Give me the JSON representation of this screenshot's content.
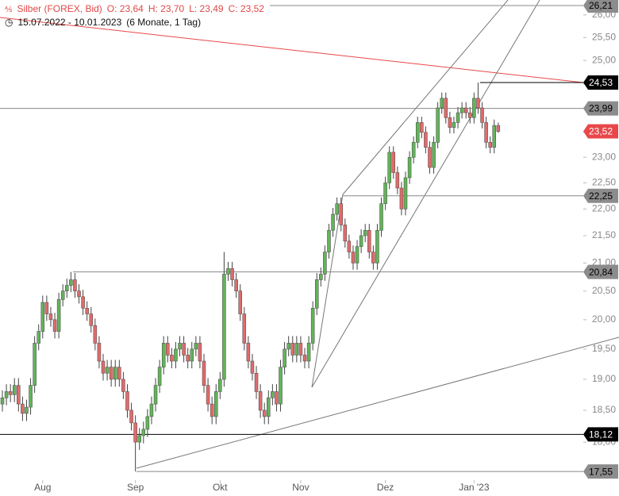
{
  "chart_data": {
    "type": "candlestick",
    "title": "Silber (FOREX, Bid)",
    "ohlc_text": [
      "O: 23,64",
      "H: 23,70",
      "L: 23,49",
      "C: 23,52"
    ],
    "period": "15.07.2022 - 10.01.2023",
    "period_note": "(6 Monate, 1 Tag)",
    "log_scale": true,
    "up_color": "#63b35a",
    "down_color": "#e06b6b",
    "categories": [
      null,
      null,
      null,
      null,
      null,
      null,
      null,
      null,
      null,
      null,
      "Aug",
      null,
      null,
      null,
      null,
      null,
      null,
      null,
      null,
      null,
      null,
      null,
      null,
      null,
      null,
      null,
      null,
      null,
      null,
      null,
      null,
      null,
      null,
      "Sep",
      null,
      null,
      null,
      null,
      null,
      null,
      null,
      null,
      null,
      null,
      null,
      null,
      null,
      null,
      null,
      null,
      null,
      null,
      null,
      null,
      "Okt",
      null,
      null,
      null,
      null,
      null,
      null,
      null,
      null,
      null,
      null,
      null,
      null,
      null,
      null,
      null,
      null,
      null,
      null,
      null,
      "Nov",
      null,
      null,
      null,
      null,
      null,
      null,
      null,
      null,
      null,
      null,
      null,
      null,
      null,
      null,
      null,
      null,
      null,
      null,
      null,
      null,
      "Dez",
      null,
      null,
      null,
      null,
      null,
      null,
      null,
      null,
      null,
      null,
      null,
      null,
      null,
      null,
      null,
      null,
      null,
      null,
      null,
      null,
      null,
      "Jan '23",
      null,
      null,
      null,
      null,
      null,
      null
    ],
    "open": [
      18.6,
      18.7,
      18.8,
      18.75,
      18.9,
      18.6,
      18.45,
      18.55,
      18.9,
      19.6,
      19.8,
      20.3,
      20.1,
      20.0,
      19.8,
      20.35,
      20.5,
      20.6,
      20.7,
      20.5,
      20.4,
      20.2,
      20.1,
      19.9,
      19.6,
      19.3,
      19.1,
      19.2,
      19.0,
      19.2,
      19.0,
      18.8,
      18.5,
      18.3,
      18.0,
      18.1,
      18.2,
      18.4,
      18.6,
      18.9,
      19.2,
      19.6,
      19.4,
      19.3,
      19.5,
      19.6,
      19.4,
      19.3,
      19.5,
      19.6,
      19.3,
      18.9,
      18.6,
      18.4,
      18.8,
      19.0,
      20.8,
      20.9,
      20.7,
      20.5,
      20.1,
      19.6,
      19.3,
      19.1,
      18.8,
      18.5,
      18.4,
      18.7,
      18.8,
      18.6,
      19.2,
      19.5,
      19.6,
      19.4,
      19.6,
      19.4,
      19.3,
      19.6,
      20.2,
      20.7,
      20.8,
      21.2,
      21.6,
      21.9,
      22.1,
      21.7,
      21.4,
      21.2,
      21.0,
      21.3,
      21.5,
      21.6,
      21.2,
      21.0,
      21.6,
      22.1,
      22.5,
      23.1,
      22.7,
      22.4,
      22.0,
      22.6,
      23.0,
      23.3,
      23.7,
      23.5,
      23.2,
      22.8,
      23.3,
      24.0,
      24.2,
      23.8,
      23.6,
      23.7,
      23.9,
      24.0,
      23.9,
      23.8,
      24.2,
      24.0,
      23.7,
      23.3,
      23.2,
      23.64
    ],
    "high": [
      18.82,
      18.92,
      18.92,
      19.02,
      19.02,
      18.72,
      18.67,
      19.02,
      19.72,
      19.92,
      20.42,
      20.42,
      20.22,
      20.12,
      20.47,
      20.62,
      20.72,
      20.84,
      20.82,
      20.62,
      20.52,
      20.32,
      20.22,
      20.02,
      19.72,
      19.42,
      19.32,
      19.32,
      19.32,
      19.32,
      19.12,
      18.92,
      18.62,
      18.42,
      18.22,
      18.32,
      18.52,
      18.72,
      19.02,
      19.32,
      19.72,
      19.72,
      19.52,
      19.62,
      19.72,
      19.72,
      19.52,
      19.62,
      19.72,
      19.72,
      19.42,
      19.02,
      18.72,
      18.92,
      19.12,
      21.2,
      21.02,
      21.02,
      20.82,
      20.62,
      20.22,
      19.72,
      19.42,
      19.22,
      18.92,
      18.62,
      18.82,
      18.92,
      18.92,
      19.32,
      19.62,
      19.72,
      19.72,
      19.72,
      19.72,
      19.52,
      19.72,
      20.32,
      20.82,
      20.92,
      21.32,
      21.72,
      22.02,
      22.22,
      22.22,
      21.82,
      21.52,
      21.32,
      21.42,
      21.62,
      21.72,
      21.72,
      21.32,
      21.72,
      22.22,
      22.62,
      23.22,
      23.22,
      22.82,
      22.52,
      22.72,
      23.12,
      23.42,
      23.82,
      23.82,
      23.62,
      23.32,
      23.42,
      24.12,
      24.32,
      24.32,
      23.92,
      23.82,
      24.02,
      24.12,
      24.12,
      24.02,
      24.32,
      24.53,
      24.12,
      23.82,
      23.42,
      23.76,
      23.7
    ],
    "low": [
      18.48,
      18.58,
      18.63,
      18.63,
      18.48,
      18.33,
      18.33,
      18.43,
      18.78,
      19.48,
      19.68,
      19.98,
      19.88,
      19.68,
      19.68,
      20.23,
      20.38,
      20.48,
      20.38,
      20.28,
      20.08,
      19.98,
      19.78,
      19.48,
      19.18,
      18.98,
      18.98,
      18.88,
      18.88,
      18.88,
      18.68,
      18.38,
      18.18,
      17.55,
      17.88,
      17.98,
      18.08,
      18.28,
      18.48,
      18.78,
      19.08,
      19.28,
      19.18,
      19.18,
      19.38,
      19.28,
      19.18,
      19.18,
      19.38,
      19.18,
      18.78,
      18.48,
      18.28,
      18.28,
      18.68,
      18.88,
      20.68,
      20.58,
      20.38,
      19.98,
      19.48,
      19.18,
      18.98,
      18.68,
      18.38,
      18.28,
      18.28,
      18.58,
      18.48,
      18.48,
      19.08,
      19.38,
      19.28,
      19.28,
      19.28,
      19.18,
      19.18,
      19.48,
      20.08,
      20.58,
      20.68,
      21.08,
      21.48,
      21.78,
      21.58,
      21.28,
      21.08,
      20.88,
      20.88,
      21.18,
      21.38,
      21.08,
      20.88,
      20.88,
      21.48,
      21.98,
      22.38,
      22.58,
      22.28,
      21.88,
      21.88,
      22.48,
      22.88,
      23.18,
      23.38,
      23.08,
      22.68,
      22.68,
      23.18,
      23.88,
      23.68,
      23.48,
      23.48,
      23.58,
      23.78,
      23.78,
      23.68,
      23.68,
      23.88,
      23.58,
      23.18,
      23.08,
      23.08,
      23.49
    ],
    "close": [
      18.7,
      18.8,
      18.75,
      18.9,
      18.6,
      18.45,
      18.55,
      18.9,
      19.6,
      19.8,
      20.3,
      20.1,
      20.0,
      19.8,
      20.35,
      20.5,
      20.6,
      20.7,
      20.5,
      20.4,
      20.2,
      20.1,
      19.9,
      19.6,
      19.3,
      19.1,
      19.2,
      19.0,
      19.2,
      19.0,
      18.8,
      18.5,
      18.3,
      18.0,
      18.1,
      18.2,
      18.4,
      18.6,
      18.9,
      19.2,
      19.6,
      19.4,
      19.3,
      19.5,
      19.6,
      19.4,
      19.3,
      19.5,
      19.6,
      19.3,
      18.9,
      18.6,
      18.4,
      18.8,
      19.0,
      20.8,
      20.9,
      20.7,
      20.5,
      20.1,
      19.6,
      19.3,
      19.1,
      18.8,
      18.5,
      18.4,
      18.7,
      18.8,
      18.6,
      19.2,
      19.5,
      19.6,
      19.4,
      19.6,
      19.4,
      19.3,
      19.6,
      20.2,
      20.7,
      20.8,
      21.2,
      21.6,
      21.9,
      22.1,
      21.7,
      21.4,
      21.2,
      21.0,
      21.3,
      21.5,
      21.6,
      21.2,
      21.0,
      21.6,
      22.1,
      22.5,
      23.1,
      22.7,
      22.4,
      22.0,
      22.6,
      23.0,
      23.3,
      23.7,
      23.5,
      23.2,
      22.8,
      23.3,
      24.0,
      24.2,
      23.8,
      23.6,
      23.7,
      23.9,
      24.0,
      23.9,
      23.8,
      24.2,
      24.0,
      23.7,
      23.3,
      23.2,
      23.64,
      23.52
    ],
    "ylim": [
      17.48,
      26.3
    ],
    "yticks": [
      {
        "value": 18,
        "label": "18,00"
      },
      {
        "value": 18.5,
        "label": "18,50"
      },
      {
        "value": 19,
        "label": "19,00"
      },
      {
        "value": 19.5,
        "label": "19,50"
      },
      {
        "value": 20,
        "label": "20,00"
      },
      {
        "value": 20.5,
        "label": "20,50"
      },
      {
        "value": 21,
        "label": "21,00"
      },
      {
        "value": 21.5,
        "label": "21,50"
      },
      {
        "value": 22,
        "label": "22,00"
      },
      {
        "value": 22.5,
        "label": "22,50"
      },
      {
        "value": 23,
        "label": "23,00"
      },
      {
        "value": 23.5,
        "label": "23,50"
      },
      {
        "value": 24,
        "label": "24,00"
      },
      {
        "value": 24.5,
        "label": "24,50"
      },
      {
        "value": 25,
        "label": "25,00"
      },
      {
        "value": 25.5,
        "label": "25,50"
      },
      {
        "value": 26,
        "label": "26,00"
      }
    ],
    "levels": [
      {
        "value": 26.21,
        "label": "26,21",
        "color": "#8c8c8c",
        "text_color": "#000",
        "line": true
      },
      {
        "value": 24.53,
        "label": "24,53",
        "color": "#000",
        "text_color": "#fff",
        "line": true
      },
      {
        "value": 23.99,
        "label": "23,99",
        "color": "#8c8c8c",
        "text_color": "#000",
        "line": true
      },
      {
        "value": 23.52,
        "label": "23,52",
        "color": "#e8474a",
        "text_color": "#fff",
        "line": false
      },
      {
        "value": 22.25,
        "label": "22,25",
        "color": "#8c8c8c",
        "text_color": "#000",
        "line": true
      },
      {
        "value": 20.84,
        "label": "20,84",
        "color": "#8c8c8c",
        "text_color": "#000",
        "line": true
      },
      {
        "value": 18.12,
        "label": "18,12",
        "color": "#000",
        "text_color": "#fff",
        "line": true
      },
      {
        "value": 17.55,
        "label": "17,55",
        "color": "#8c8c8c",
        "text_color": "#000",
        "line": true
      }
    ]
  }
}
